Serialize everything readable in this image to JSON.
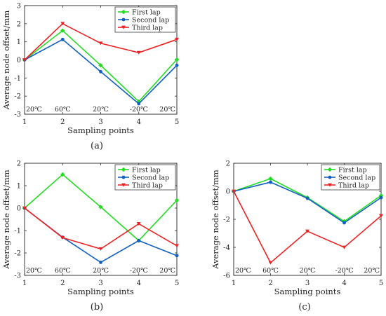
{
  "figure": {
    "panels": [
      {
        "caption": "(a)",
        "chart_data": {
          "type": "line",
          "x": [
            1,
            2,
            3,
            4,
            5
          ],
          "xlim": [
            1,
            5
          ],
          "ylim": [
            -3,
            3
          ],
          "xticks": [
            1,
            2,
            3,
            4,
            5
          ],
          "yticks": [
            -3,
            -2,
            -1,
            0,
            1,
            2,
            3
          ],
          "xlabel": "Sampling points",
          "ylabel": "Average node offset/mm",
          "legend_position": "top-right",
          "grid": false,
          "temperature_labels": [
            "20℃",
            "60℃",
            "20℃",
            "-20℃",
            "20℃"
          ],
          "series": [
            {
              "name": "First lap",
              "color": "#22dd22",
              "values": [
                0,
                1.62,
                -0.3,
                -2.3,
                0.02
              ]
            },
            {
              "name": "Second lap",
              "color": "#1060c0",
              "values": [
                0,
                1.13,
                -0.65,
                -2.42,
                -0.3
              ]
            },
            {
              "name": "Third lap",
              "color": "#ee2222",
              "values": [
                0,
                2.0,
                0.92,
                0.4,
                1.13
              ]
            }
          ]
        }
      },
      {
        "caption": "(b)",
        "chart_data": {
          "type": "line",
          "x": [
            1,
            2,
            3,
            4,
            5
          ],
          "xlim": [
            1,
            5
          ],
          "ylim": [
            -3,
            2
          ],
          "xticks": [
            1,
            2,
            3,
            4,
            5
          ],
          "yticks": [
            -3,
            -2,
            -1,
            0,
            1,
            2
          ],
          "xlabel": "Sampling points",
          "ylabel": "Average node offset/mm",
          "legend_position": "top-right",
          "grid": false,
          "temperature_labels": [
            "20℃",
            "60℃",
            "20℃",
            "-20℃",
            "20℃"
          ],
          "series": [
            {
              "name": "First lap",
              "color": "#22dd22",
              "values": [
                0,
                1.5,
                0.05,
                -1.45,
                0.35
              ]
            },
            {
              "name": "Second lap",
              "color": "#1060c0",
              "values": [
                0,
                -1.3,
                -2.42,
                -1.45,
                -2.12
              ]
            },
            {
              "name": "Third lap",
              "color": "#ee2222",
              "values": [
                0,
                -1.32,
                -1.82,
                -0.7,
                -1.68
              ]
            }
          ]
        }
      },
      {
        "caption": "(c)",
        "chart_data": {
          "type": "line",
          "x": [
            1,
            2,
            3,
            4,
            5
          ],
          "xlim": [
            1,
            5
          ],
          "ylim": [
            -6,
            2
          ],
          "xticks": [
            1,
            2,
            3,
            4,
            5
          ],
          "yticks": [
            -6,
            -4,
            -2,
            0,
            2
          ],
          "xlabel": "Sampling points",
          "ylabel": "Average node offset/mm",
          "legend_position": "top-right",
          "grid": false,
          "temperature_labels": [
            "20℃",
            "60℃",
            "20℃",
            "-20℃",
            "20℃"
          ],
          "series": [
            {
              "name": "First lap",
              "color": "#22dd22",
              "values": [
                0,
                0.9,
                -0.45,
                -2.15,
                -0.3
              ]
            },
            {
              "name": "Second lap",
              "color": "#1060c0",
              "values": [
                0,
                0.65,
                -0.5,
                -2.25,
                -0.45
              ]
            },
            {
              "name": "Third lap",
              "color": "#ee2222",
              "values": [
                0,
                -5.1,
                -2.85,
                -4.0,
                -1.75
              ]
            }
          ]
        }
      }
    ]
  }
}
